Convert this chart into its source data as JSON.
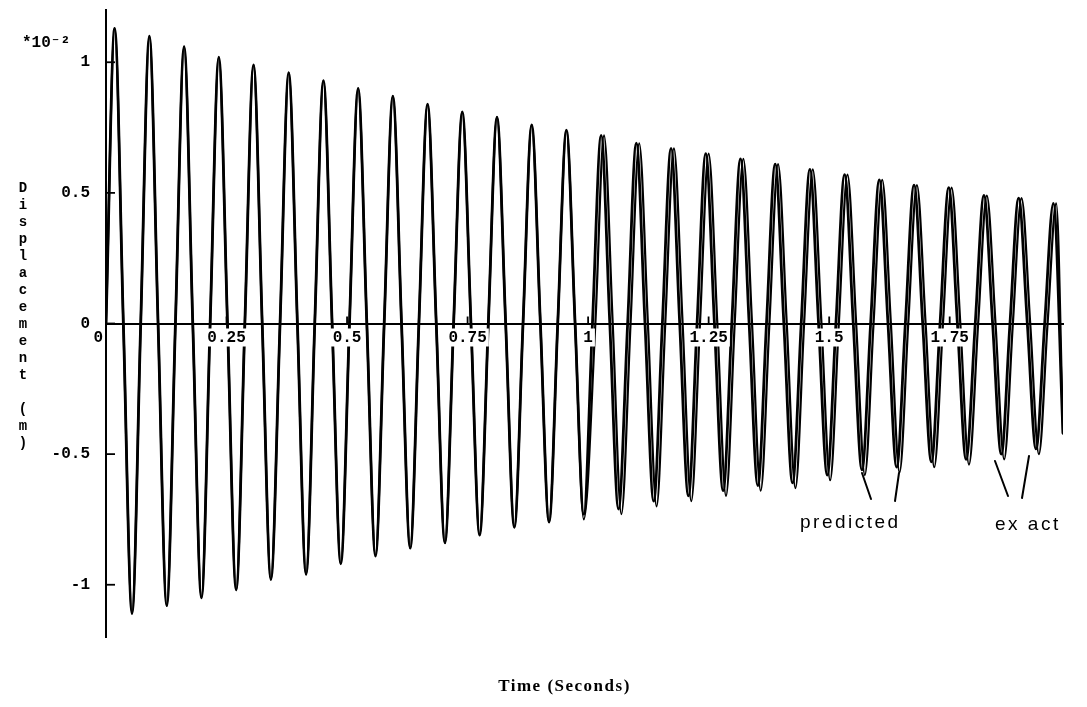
{
  "chart_data": {
    "type": "line",
    "xlabel": "Time (Seconds)",
    "ylabel": "Displacement (m)",
    "annotations": [
      "*10⁻²"
    ],
    "legend": "bottom right",
    "xlim": [
      0,
      1.985
    ],
    "xticks": [
      0,
      0.25,
      0.5,
      0.75,
      1,
      1.25,
      1.5,
      1.75
    ],
    "ylim": [
      -1.2,
      1.2
    ],
    "yticks": [
      -1,
      -0.5,
      0,
      0.5,
      1
    ],
    "x": [
      0,
      0.018,
      0.036,
      0.054,
      0.072,
      0.09,
      0.108,
      0.126,
      0.144,
      0.162,
      0.18,
      0.198,
      0.216,
      0.234,
      0.252,
      0.27,
      0.288,
      0.306,
      0.324,
      0.342,
      0.361,
      0.379,
      0.397,
      0.415,
      0.433,
      0.451,
      0.469,
      0.487,
      0.505,
      0.523,
      0.541,
      0.559,
      0.577,
      0.595,
      0.613,
      0.631,
      0.649,
      0.667,
      0.685,
      0.703,
      0.721,
      0.739,
      0.757,
      0.775,
      0.793,
      0.811,
      0.829,
      0.847,
      0.865,
      0.883,
      0.901,
      0.919,
      0.937,
      0.955,
      0.973,
      0.991,
      1.009,
      1.027,
      1.045,
      1.063,
      1.082,
      1.1,
      1.118,
      1.136,
      1.154,
      1.172,
      1.19,
      1.208,
      1.226,
      1.244,
      1.262,
      1.28,
      1.298,
      1.316,
      1.334,
      1.352,
      1.37,
      1.388,
      1.406,
      1.424,
      1.442,
      1.46,
      1.478,
      1.496,
      1.514,
      1.532,
      1.55,
      1.568,
      1.586,
      1.604,
      1.622,
      1.64,
      1.658,
      1.676,
      1.694,
      1.712,
      1.73,
      1.748,
      1.766,
      1.784,
      1.803,
      1.821,
      1.839,
      1.857,
      1.875,
      1.893,
      1.911,
      1.929,
      1.947,
      1.965,
      1.985
    ],
    "series": [
      {
        "name": "predicted",
        "color": "#000000",
        "values": [
          0,
          1.13,
          0,
          -1.11,
          0,
          1.1,
          0,
          -1.08,
          0,
          1.06,
          0,
          -1.05,
          0,
          1.02,
          0,
          -1.02,
          0,
          0.99,
          0,
          -0.98,
          0,
          0.96,
          0,
          -0.96,
          0,
          0.93,
          0,
          -0.92,
          0,
          0.9,
          0,
          -0.89,
          0,
          0.87,
          0,
          -0.86,
          0,
          0.84,
          0,
          -0.84,
          0,
          0.81,
          0,
          -0.81,
          0,
          0.79,
          0,
          -0.78,
          0,
          0.76,
          0,
          -0.76,
          0,
          0.74,
          0,
          -0.73,
          0,
          0.72,
          0,
          -0.71,
          0,
          0.69,
          0,
          -0.68,
          0,
          0.67,
          0,
          -0.66,
          0,
          0.65,
          0,
          -0.64,
          0,
          0.63,
          0,
          -0.62,
          0,
          0.61,
          0,
          -0.61,
          0,
          0.59,
          0,
          -0.58,
          0,
          0.57,
          0,
          -0.56,
          0,
          0.55,
          0,
          -0.55,
          0,
          0.53,
          0,
          -0.53,
          0,
          0.52,
          0,
          -0.52,
          0,
          0.49,
          0,
          -0.5,
          0,
          0.48,
          0,
          -0.48,
          0,
          0.46,
          -0.42
        ]
      },
      {
        "name": "ex act",
        "color": "#000000",
        "x": [
          0,
          0.018,
          0.036,
          0.054,
          0.072,
          0.09,
          0.108,
          0.126,
          0.144,
          0.162,
          0.18,
          0.198,
          0.216,
          0.234,
          0.252,
          0.27,
          0.288,
          0.306,
          0.324,
          0.342,
          0.361,
          0.379,
          0.397,
          0.415,
          0.433,
          0.451,
          0.469,
          0.487,
          0.505,
          0.523,
          0.541,
          0.559,
          0.577,
          0.595,
          0.613,
          0.631,
          0.649,
          0.667,
          0.685,
          0.703,
          0.721,
          0.739,
          0.757,
          0.775,
          0.793,
          0.811,
          0.829,
          0.847,
          0.865,
          0.883,
          0.901,
          0.919,
          0.937,
          0.955,
          0.973,
          0.991,
          1.015,
          1.033,
          1.051,
          1.069,
          1.088,
          1.106,
          1.124,
          1.142,
          1.16,
          1.178,
          1.196,
          1.214,
          1.232,
          1.25,
          1.268,
          1.286,
          1.304,
          1.322,
          1.34,
          1.358,
          1.376,
          1.394,
          1.412,
          1.43,
          1.448,
          1.466,
          1.484,
          1.502,
          1.52,
          1.538,
          1.556,
          1.574,
          1.592,
          1.61,
          1.628,
          1.646,
          1.664,
          1.682,
          1.7,
          1.718,
          1.736,
          1.754,
          1.772,
          1.79,
          1.809,
          1.827,
          1.845,
          1.863,
          1.881,
          1.899,
          1.917,
          1.935,
          1.953,
          1.971,
          1.985
        ],
        "values": [
          0,
          1.13,
          0,
          -1.11,
          0,
          1.1,
          0,
          -1.08,
          0,
          1.06,
          0,
          -1.05,
          0,
          1.02,
          0,
          -1.02,
          0,
          0.99,
          0,
          -0.98,
          0,
          0.96,
          0,
          -0.96,
          0,
          0.93,
          0,
          -0.92,
          0,
          0.9,
          0,
          -0.89,
          0,
          0.87,
          0,
          -0.86,
          0,
          0.84,
          0,
          -0.84,
          0,
          0.81,
          0,
          -0.81,
          0,
          0.79,
          0,
          -0.78,
          0,
          0.76,
          0,
          -0.76,
          0,
          0.74,
          0,
          -0.75,
          0,
          0.72,
          0,
          -0.73,
          0,
          0.69,
          0,
          -0.7,
          0,
          0.67,
          0,
          -0.68,
          0,
          0.65,
          0,
          -0.66,
          0,
          0.63,
          0,
          -0.64,
          0,
          0.61,
          0,
          -0.63,
          0,
          0.59,
          0,
          -0.6,
          0,
          0.57,
          0,
          -0.58,
          0,
          0.55,
          0,
          -0.57,
          0,
          0.53,
          0,
          -0.55,
          0,
          0.52,
          0,
          -0.54,
          0,
          0.49,
          0,
          -0.52,
          0,
          0.48,
          0,
          -0.5,
          0,
          0.46,
          -0.42
        ]
      }
    ]
  }
}
